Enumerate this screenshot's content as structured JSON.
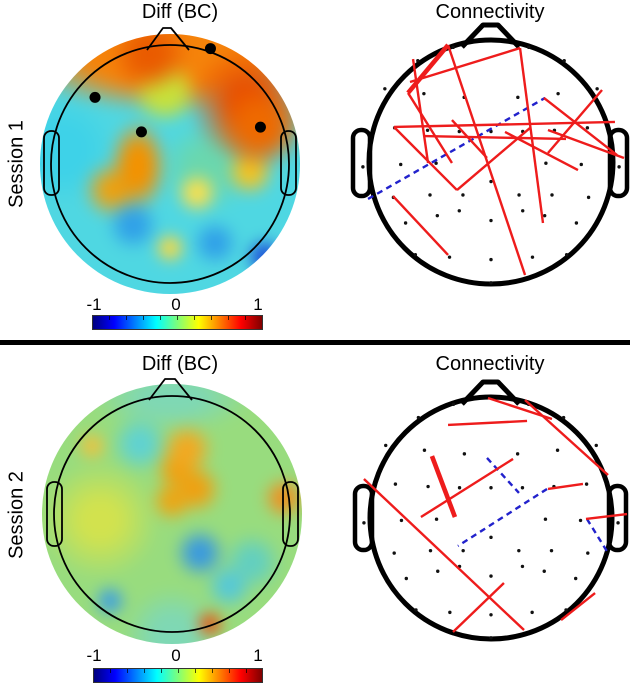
{
  "figure": {
    "background": "#ffffff",
    "divider_color": "#000000"
  },
  "colors": {
    "connection_positive_red": "#ee1c1c",
    "connection_negative_blue": "#2222cc",
    "electrode_dot": "#111111",
    "marked_electrode": "#000000",
    "head_outline": "#000000"
  },
  "colormap": {
    "name": "jet",
    "stops": [
      "#00007f",
      "#0000ff",
      "#0080ff",
      "#00ffff",
      "#7dff7a",
      "#ffff00",
      "#ff7f00",
      "#ff0000",
      "#7f0000"
    ]
  },
  "montage_normalized": [
    [
      -0.31,
      -0.94
    ],
    [
      0.31,
      -0.94
    ],
    [
      -0.6,
      -0.83
    ],
    [
      0.6,
      -0.83
    ],
    [
      -0.87,
      -0.6
    ],
    [
      -0.55,
      -0.56
    ],
    [
      -0.22,
      -0.53
    ],
    [
      0.22,
      -0.53
    ],
    [
      0.55,
      -0.56
    ],
    [
      0.87,
      -0.6
    ],
    [
      -0.79,
      -0.28
    ],
    [
      -0.52,
      -0.26
    ],
    [
      -0.26,
      -0.25
    ],
    [
      0.0,
      -0.25
    ],
    [
      0.26,
      -0.25
    ],
    [
      0.52,
      -0.26
    ],
    [
      0.79,
      -0.28
    ],
    [
      -1.05,
      0.04
    ],
    [
      -0.74,
      0.02
    ],
    [
      -0.45,
      0.01
    ],
    [
      0.45,
      0.01
    ],
    [
      0.74,
      0.02
    ],
    [
      1.05,
      0.04
    ],
    [
      -0.8,
      0.29
    ],
    [
      -0.5,
      0.27
    ],
    [
      -0.23,
      0.27
    ],
    [
      0.0,
      0.16
    ],
    [
      0.23,
      0.27
    ],
    [
      0.5,
      0.27
    ],
    [
      0.8,
      0.29
    ],
    [
      -0.7,
      0.5
    ],
    [
      -0.44,
      0.44
    ],
    [
      -0.26,
      0.4
    ],
    [
      0.0,
      0.48
    ],
    [
      0.26,
      0.4
    ],
    [
      0.44,
      0.44
    ],
    [
      0.7,
      0.5
    ],
    [
      -0.62,
      0.76
    ],
    [
      -0.34,
      0.78
    ],
    [
      0.0,
      0.8
    ],
    [
      0.34,
      0.78
    ],
    [
      0.62,
      0.76
    ],
    [
      0.0,
      0.99
    ]
  ],
  "chart_data": [
    {
      "panel": "session1-diff-topomap",
      "type": "topomap",
      "title": "Diff (BC)",
      "row_label": "Session 1",
      "colorbar": {
        "range": [
          -1,
          1
        ],
        "ticks": [
          "-1",
          "0",
          "1"
        ]
      },
      "marked_electrodes": [
        [
          0.34,
          -0.97
        ],
        [
          -0.63,
          -0.56
        ],
        [
          -0.24,
          -0.27
        ],
        [
          0.76,
          -0.31
        ]
      ],
      "description": "Frontal band strongly positive (orange/red, strongest fronto-right); central-left orange patch; posterior half near zero to negative (cyan/blue), dark blue at right-occipital rim; small yellow occipital spot."
    },
    {
      "panel": "session1-connectivity",
      "type": "connectivity",
      "title": "Connectivity",
      "red_lines": [
        [
          -0.352,
          -0.959,
          -0.68,
          -0.566,
          4.6
        ],
        [
          -0.68,
          -0.566,
          -0.32,
          0.008
        ],
        [
          -0.352,
          -0.959,
          0.279,
          0.926
        ],
        [
          0.238,
          -0.934,
          -0.664,
          -0.656
        ],
        [
          -0.639,
          -0.844,
          -0.516,
          0.008
        ],
        [
          -0.795,
          -0.287,
          1.016,
          -0.328
        ],
        [
          -0.795,
          -0.287,
          -0.279,
          0.23
        ],
        [
          -0.279,
          0.23,
          0.32,
          -0.279
        ],
        [
          0.238,
          -0.934,
          0.426,
          0.5
        ],
        [
          0.434,
          -0.525,
          1.033,
          -0.057
        ],
        [
          0.91,
          -0.59,
          0.467,
          -0.074
        ],
        [
          0.467,
          -0.262,
          1.09,
          -0.033
        ],
        [
          0.115,
          -0.246,
          0.713,
          0.066
        ],
        [
          -0.32,
          -0.344,
          -0.033,
          -0.033
        ],
        [
          -0.803,
          0.279,
          -0.352,
          0.762
        ],
        [
          -0.549,
          -0.213,
          0.615,
          -0.189
        ]
      ],
      "blue_dashed_lines": [
        [
          -1.008,
          0.303,
          0.443,
          -0.525
        ]
      ]
    },
    {
      "panel": "session2-diff-topomap",
      "type": "topomap",
      "title": "Diff (BC)",
      "row_label": "Session 2",
      "colorbar": {
        "range": [
          -1,
          1
        ],
        "ticks": [
          "-1",
          "0",
          "1"
        ]
      },
      "marked_electrodes": [],
      "description": "Mostly near zero (green/yellow-green); L-shaped orange patch at centro-frontal midline; orange at right temporal rim; blue patches centro-parietal right and occipito-left; orange-red sliver at right-occipital rim; cyan blob fronto-central left."
    },
    {
      "panel": "session2-connectivity",
      "type": "connectivity",
      "title": "Connectivity",
      "red_lines": [
        [
          -0.025,
          -0.992,
          0.504,
          -0.818
        ],
        [
          -0.355,
          -0.769,
          0.298,
          -0.802
        ],
        [
          0.281,
          -0.975,
          0.967,
          -0.355
        ],
        [
          -0.488,
          -0.512,
          -0.298,
          -0.008,
          4.6
        ],
        [
          0.182,
          -0.488,
          -0.579,
          -0.008
        ],
        [
          -1.05,
          -0.322,
          0.273,
          0.926
        ],
        [
          0.471,
          -0.24,
          0.76,
          -0.281
        ],
        [
          0.785,
          0.008,
          1.124,
          -0.033
        ],
        [
          0.107,
          0.537,
          -0.314,
          0.942
        ],
        [
          0.579,
          0.843,
          0.86,
          0.62
        ]
      ],
      "blue_dashed_lines": [
        [
          -0.033,
          -0.496,
          0.231,
          -0.207
        ],
        [
          0.463,
          -0.24,
          -0.273,
          0.231
        ],
        [
          0.793,
          0.008,
          0.967,
          0.289
        ]
      ]
    }
  ]
}
